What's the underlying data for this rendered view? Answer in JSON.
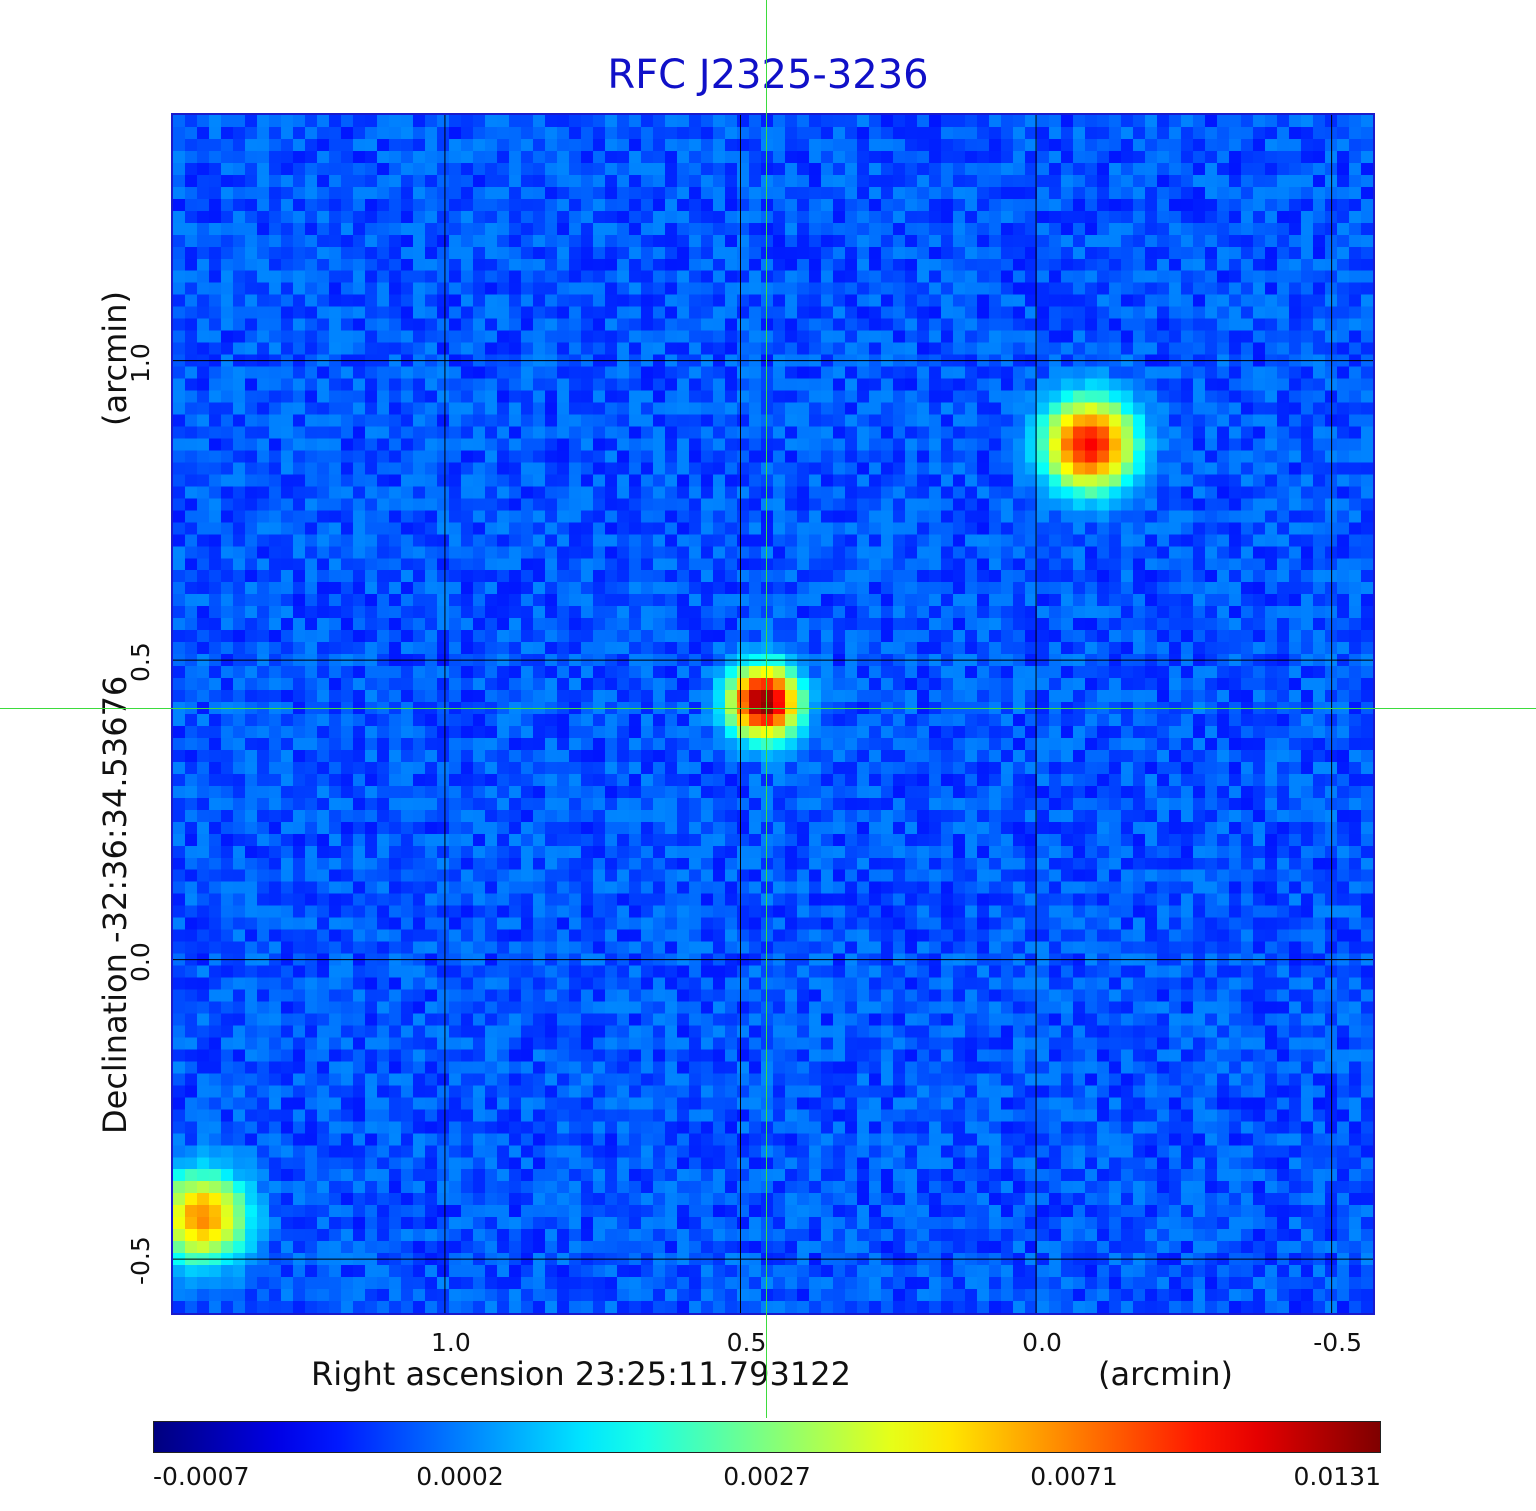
{
  "chart_data": {
    "type": "heatmap",
    "title": "RFC J2325-3236",
    "xlabel": "Right ascension  23:25:11.793122",
    "xunit": "(arcmin)",
    "ylabel": "Declination  -32:36:34.53676",
    "yunit": "(arcmin)",
    "x_range_arcmin": [
      1.46,
      -0.57
    ],
    "y_range_arcmin": [
      -0.59,
      1.41
    ],
    "x_ticks": [
      1.0,
      0.5,
      0.0,
      -0.5
    ],
    "x_tick_labels": [
      "1.0",
      "0.5",
      "0.0",
      "-0.5"
    ],
    "y_ticks": [
      1.0,
      0.5,
      0.0,
      -0.5
    ],
    "y_tick_labels": [
      "1.0",
      "0.5",
      "0.0",
      "-0.5"
    ],
    "grid": true,
    "crosshair_arcmin": {
      "x": 0.46,
      "y": 0.43
    },
    "colormap": "jet",
    "colorbar": {
      "ticks": [
        -0.0007,
        0.0002,
        0.0027,
        0.0071,
        0.0131
      ],
      "tick_labels": [
        "-0.0007",
        "0.0002",
        "0.0027",
        "0.0071",
        "0.0131"
      ],
      "placement": "bottom"
    },
    "sources": [
      {
        "x": 0.46,
        "y": 0.43,
        "peak": 0.0131
      },
      {
        "x": -0.09,
        "y": 0.86,
        "peak": 0.01
      },
      {
        "x": 1.41,
        "y": -0.43,
        "peak": 0.007
      }
    ]
  },
  "colors": {
    "title": "#1010c8",
    "frame": "#1a1acc",
    "grid": "#000000",
    "crosshair": "#3ddc3d"
  }
}
